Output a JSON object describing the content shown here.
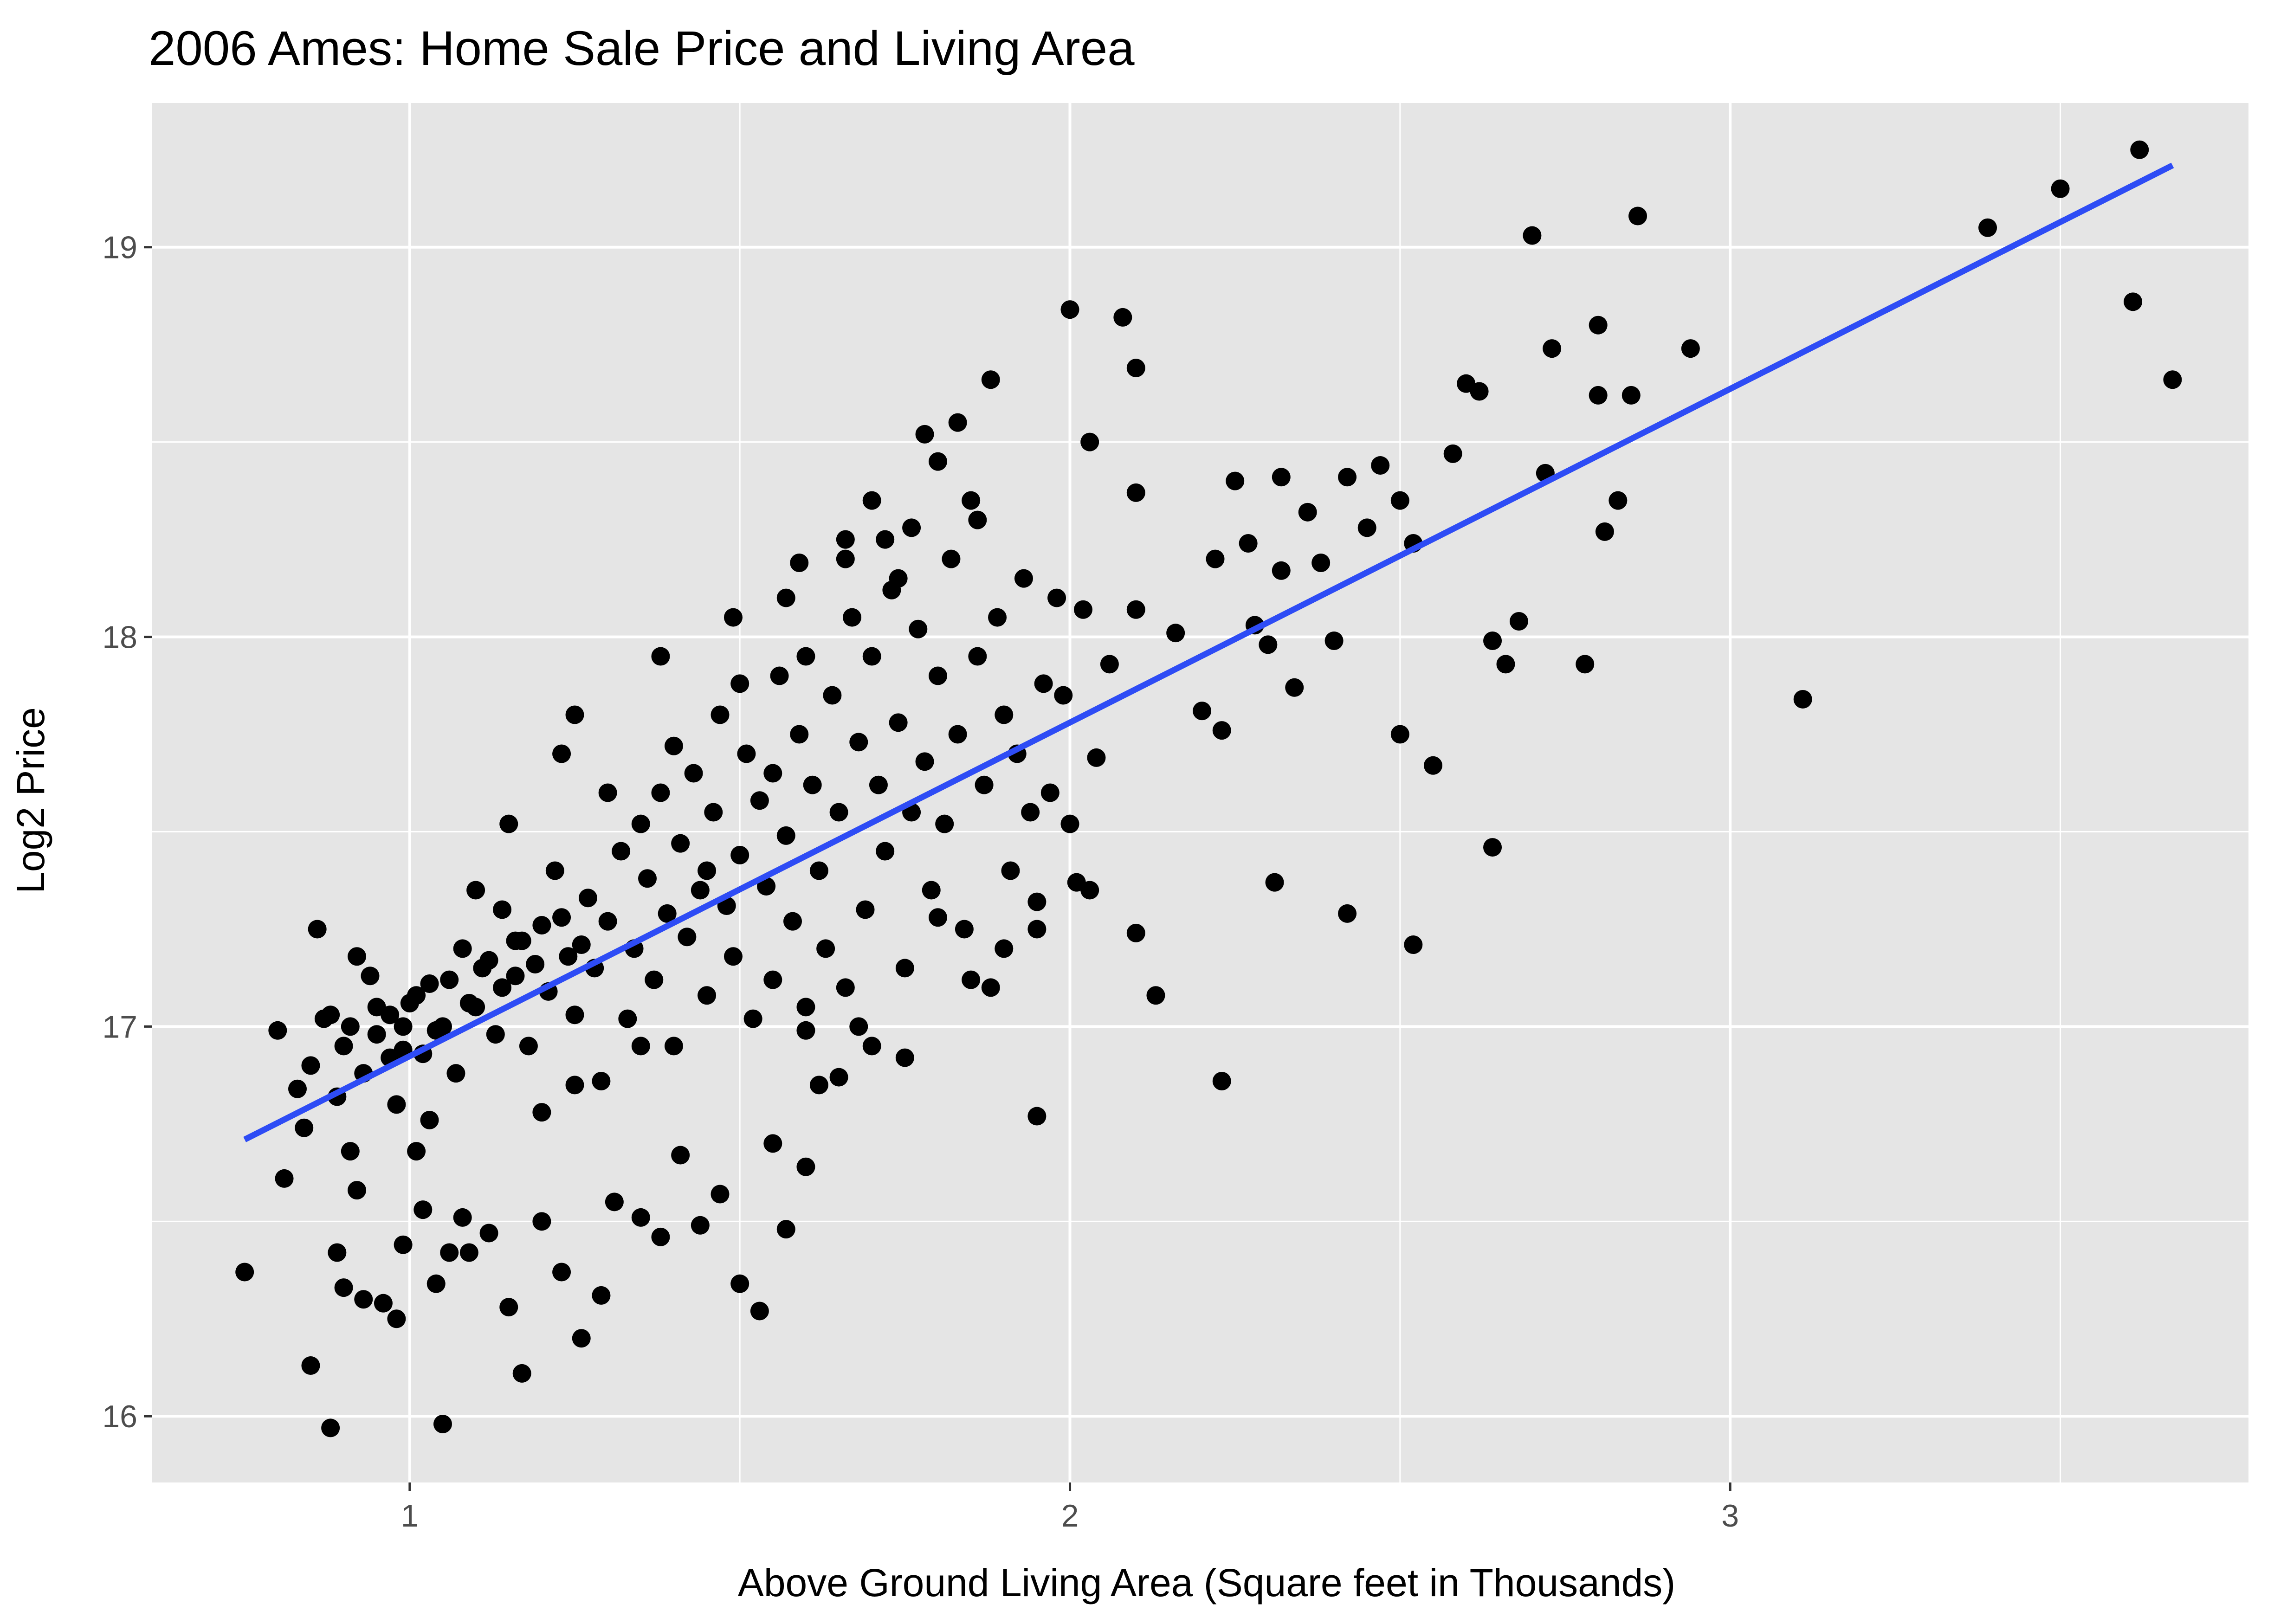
{
  "chart_data": {
    "type": "scatter",
    "title": "2006 Ames: Home Sale Price and Living Area",
    "xlabel": "Above Ground Living Area (Square feet in Thousands)",
    "ylabel": "Log2 Price",
    "xlim": [
      0.61,
      3.785
    ],
    "ylim": [
      15.83,
      19.37
    ],
    "x_ticks": [
      1,
      2,
      3
    ],
    "x_tick_labels": [
      "1",
      "2",
      "3"
    ],
    "y_ticks": [
      16,
      17,
      18,
      19
    ],
    "y_tick_labels": [
      "16",
      "17",
      "18",
      "19"
    ],
    "x_minor_ticks": [
      1.5,
      2.5,
      3.5
    ],
    "y_minor_ticks": [
      16.5,
      17.5,
      18.5
    ],
    "grid": true,
    "legend": "none",
    "panel_color": "#e5e5e5",
    "grid_color": "#ffffff",
    "point_color": "#000000",
    "fit_line_color": "#2e4cf5",
    "fit_line": {
      "x": [
        0.75,
        3.67
      ],
      "y": [
        16.71,
        19.21
      ]
    },
    "series": [
      {
        "points": [
          [
            0.75,
            16.37
          ],
          [
            0.81,
            16.61
          ],
          [
            0.85,
            16.13
          ],
          [
            0.88,
            15.97
          ],
          [
            0.84,
            16.74
          ],
          [
            0.89,
            16.42
          ],
          [
            0.91,
            16.68
          ],
          [
            0.92,
            16.58
          ],
          [
            0.93,
            16.3
          ],
          [
            0.96,
            16.29
          ],
          [
            0.98,
            16.25
          ],
          [
            0.99,
            16.44
          ],
          [
            1.02,
            16.53
          ],
          [
            1.04,
            16.34
          ],
          [
            1.06,
            16.42
          ],
          [
            1.01,
            16.68
          ],
          [
            1.08,
            16.51
          ],
          [
            1.09,
            16.42
          ],
          [
            1.12,
            16.47
          ],
          [
            1.15,
            16.28
          ],
          [
            1.17,
            16.11
          ],
          [
            1.2,
            16.5
          ],
          [
            1.23,
            16.37
          ],
          [
            1.26,
            16.2
          ],
          [
            1.29,
            16.31
          ],
          [
            1.31,
            16.55
          ],
          [
            1.35,
            16.51
          ],
          [
            1.38,
            16.46
          ],
          [
            1.41,
            16.67
          ],
          [
            1.44,
            16.49
          ],
          [
            1.47,
            16.57
          ],
          [
            1.5,
            16.34
          ],
          [
            1.53,
            16.27
          ],
          [
            1.55,
            16.7
          ],
          [
            1.57,
            16.48
          ],
          [
            1.6,
            16.64
          ],
          [
            1.05,
            15.98
          ],
          [
            0.9,
            16.33
          ],
          [
            0.98,
            16.8
          ],
          [
            1.03,
            16.76
          ],
          [
            0.86,
            17.25
          ],
          [
            0.88,
            17.03
          ],
          [
            0.9,
            16.95
          ],
          [
            0.92,
            17.18
          ],
          [
            0.94,
            17.13
          ],
          [
            0.95,
            17.05
          ],
          [
            0.97,
            16.92
          ],
          [
            0.99,
            17.0
          ],
          [
            1.0,
            17.06
          ],
          [
            1.02,
            16.93
          ],
          [
            1.03,
            17.11
          ],
          [
            1.05,
            17.0
          ],
          [
            1.07,
            16.88
          ],
          [
            1.08,
            17.2
          ],
          [
            1.1,
            17.05
          ],
          [
            1.11,
            17.15
          ],
          [
            1.13,
            16.98
          ],
          [
            1.14,
            17.3
          ],
          [
            1.16,
            17.13
          ],
          [
            1.17,
            17.22
          ],
          [
            1.18,
            16.95
          ],
          [
            1.2,
            17.26
          ],
          [
            1.21,
            17.09
          ],
          [
            1.22,
            17.4
          ],
          [
            1.24,
            17.18
          ],
          [
            1.25,
            17.03
          ],
          [
            1.27,
            17.33
          ],
          [
            1.28,
            17.15
          ],
          [
            1.29,
            16.86
          ],
          [
            1.3,
            17.27
          ],
          [
            1.32,
            17.45
          ],
          [
            1.33,
            17.02
          ],
          [
            1.34,
            17.2
          ],
          [
            1.35,
            17.52
          ],
          [
            1.36,
            17.38
          ],
          [
            1.37,
            17.12
          ],
          [
            1.38,
            17.6
          ],
          [
            1.39,
            17.29
          ],
          [
            1.4,
            16.95
          ],
          [
            1.41,
            17.47
          ],
          [
            1.42,
            17.23
          ],
          [
            1.43,
            17.65
          ],
          [
            1.44,
            17.35
          ],
          [
            1.45,
            17.08
          ],
          [
            1.46,
            17.55
          ],
          [
            1.47,
            17.8
          ],
          [
            1.48,
            17.31
          ],
          [
            1.49,
            17.18
          ],
          [
            1.5,
            17.44
          ],
          [
            1.51,
            17.7
          ],
          [
            1.52,
            17.02
          ],
          [
            1.53,
            17.58
          ],
          [
            1.54,
            17.36
          ],
          [
            1.55,
            17.12
          ],
          [
            1.56,
            17.9
          ],
          [
            1.57,
            17.49
          ],
          [
            1.58,
            17.27
          ],
          [
            1.59,
            17.75
          ],
          [
            1.6,
            16.99
          ],
          [
            1.61,
            17.62
          ],
          [
            1.1,
            17.35
          ],
          [
            1.15,
            17.52
          ],
          [
            1.2,
            16.78
          ],
          [
            1.25,
            16.85
          ],
          [
            1.3,
            17.6
          ],
          [
            1.35,
            16.95
          ],
          [
            1.4,
            17.72
          ],
          [
            1.45,
            17.4
          ],
          [
            1.5,
            17.88
          ],
          [
            1.55,
            17.65
          ],
          [
            1.6,
            17.95
          ],
          [
            1.62,
            17.4
          ],
          [
            1.63,
            17.2
          ],
          [
            1.64,
            17.85
          ],
          [
            1.65,
            17.55
          ],
          [
            1.66,
            17.1
          ],
          [
            1.67,
            18.05
          ],
          [
            1.68,
            17.73
          ],
          [
            1.69,
            17.3
          ],
          [
            1.7,
            17.95
          ],
          [
            1.71,
            17.62
          ],
          [
            1.72,
            17.45
          ],
          [
            1.73,
            18.12
          ],
          [
            1.74,
            17.78
          ],
          [
            1.75,
            17.15
          ],
          [
            1.76,
            17.55
          ],
          [
            1.77,
            18.02
          ],
          [
            1.78,
            17.68
          ],
          [
            1.79,
            17.35
          ],
          [
            1.8,
            17.9
          ],
          [
            1.81,
            17.52
          ],
          [
            1.82,
            18.2
          ],
          [
            1.83,
            17.75
          ],
          [
            1.84,
            17.25
          ],
          [
            1.85,
            18.35
          ],
          [
            1.86,
            17.95
          ],
          [
            1.87,
            17.62
          ],
          [
            1.88,
            17.1
          ],
          [
            1.89,
            18.05
          ],
          [
            1.9,
            17.8
          ],
          [
            1.91,
            17.4
          ],
          [
            1.92,
            17.7
          ],
          [
            1.93,
            18.15
          ],
          [
            1.94,
            17.55
          ],
          [
            1.95,
            17.32
          ],
          [
            1.96,
            17.88
          ],
          [
            1.97,
            17.6
          ],
          [
            1.98,
            18.1
          ],
          [
            1.99,
            17.85
          ],
          [
            2.0,
            17.52
          ],
          [
            1.6,
            17.05
          ],
          [
            1.65,
            16.87
          ],
          [
            1.7,
            16.95
          ],
          [
            1.75,
            16.92
          ],
          [
            1.8,
            17.28
          ],
          [
            1.85,
            17.12
          ],
          [
            1.9,
            17.2
          ],
          [
            1.95,
            17.25
          ],
          [
            1.62,
            16.85
          ],
          [
            1.68,
            17.0
          ],
          [
            1.72,
            18.25
          ],
          [
            1.76,
            18.28
          ],
          [
            1.78,
            18.52
          ],
          [
            1.8,
            18.45
          ],
          [
            1.83,
            18.55
          ],
          [
            1.86,
            18.3
          ],
          [
            1.88,
            18.66
          ],
          [
            1.7,
            18.35
          ],
          [
            1.66,
            18.2
          ],
          [
            1.74,
            18.15
          ],
          [
            0.8,
            16.99
          ],
          [
            0.83,
            16.84
          ],
          [
            0.85,
            16.9
          ],
          [
            0.87,
            17.02
          ],
          [
            0.89,
            16.82
          ],
          [
            0.91,
            17.0
          ],
          [
            0.93,
            16.88
          ],
          [
            0.95,
            16.98
          ],
          [
            0.97,
            17.03
          ],
          [
            0.99,
            16.94
          ],
          [
            1.01,
            17.08
          ],
          [
            1.04,
            16.99
          ],
          [
            1.06,
            17.12
          ],
          [
            1.09,
            17.06
          ],
          [
            1.12,
            17.17
          ],
          [
            1.14,
            17.1
          ],
          [
            1.16,
            17.22
          ],
          [
            1.19,
            17.16
          ],
          [
            1.23,
            17.28
          ],
          [
            1.26,
            17.21
          ],
          [
            2.0,
            18.84
          ],
          [
            2.08,
            18.82
          ],
          [
            2.1,
            18.69
          ],
          [
            2.1,
            18.37
          ],
          [
            2.03,
            18.5
          ],
          [
            2.02,
            18.07
          ],
          [
            2.06,
            17.93
          ],
          [
            2.04,
            17.69
          ],
          [
            2.01,
            17.37
          ],
          [
            2.03,
            17.35
          ],
          [
            2.1,
            17.24
          ],
          [
            2.13,
            17.08
          ],
          [
            2.1,
            18.07
          ],
          [
            2.16,
            18.01
          ],
          [
            2.2,
            17.81
          ],
          [
            2.23,
            17.76
          ],
          [
            2.25,
            18.4
          ],
          [
            2.27,
            18.24
          ],
          [
            2.28,
            18.03
          ],
          [
            2.22,
            18.2
          ],
          [
            2.3,
            17.98
          ],
          [
            2.32,
            18.17
          ],
          [
            2.34,
            17.87
          ],
          [
            2.36,
            18.32
          ],
          [
            2.38,
            18.19
          ],
          [
            2.4,
            17.99
          ],
          [
            2.42,
            18.41
          ],
          [
            2.45,
            18.28
          ],
          [
            2.47,
            18.44
          ],
          [
            2.5,
            18.35
          ],
          [
            2.52,
            18.24
          ],
          [
            2.55,
            17.67
          ],
          [
            2.58,
            18.47
          ],
          [
            2.6,
            18.65
          ],
          [
            2.62,
            18.63
          ],
          [
            2.64,
            17.99
          ],
          [
            2.66,
            17.93
          ],
          [
            2.68,
            18.04
          ],
          [
            2.7,
            19.03
          ],
          [
            2.72,
            18.42
          ],
          [
            2.73,
            18.74
          ],
          [
            2.78,
            17.93
          ],
          [
            2.8,
            18.62
          ],
          [
            2.81,
            18.27
          ],
          [
            2.83,
            18.35
          ],
          [
            2.85,
            18.62
          ],
          [
            2.86,
            19.08
          ],
          [
            2.94,
            18.74
          ],
          [
            3.11,
            17.84
          ],
          [
            2.64,
            17.46
          ],
          [
            2.52,
            17.21
          ],
          [
            2.42,
            17.29
          ],
          [
            2.31,
            17.37
          ],
          [
            2.23,
            16.86
          ],
          [
            1.95,
            16.77
          ],
          [
            2.5,
            17.75
          ],
          [
            2.32,
            18.41
          ],
          [
            2.8,
            18.8
          ],
          [
            3.39,
            19.05
          ],
          [
            3.5,
            19.15
          ],
          [
            3.62,
            19.25
          ],
          [
            3.61,
            18.86
          ],
          [
            3.67,
            18.66
          ],
          [
            1.38,
            17.95
          ],
          [
            1.49,
            18.05
          ],
          [
            1.57,
            18.1
          ],
          [
            1.59,
            18.19
          ],
          [
            1.66,
            18.25
          ],
          [
            1.25,
            17.8
          ],
          [
            1.23,
            17.7
          ]
        ]
      }
    ]
  }
}
